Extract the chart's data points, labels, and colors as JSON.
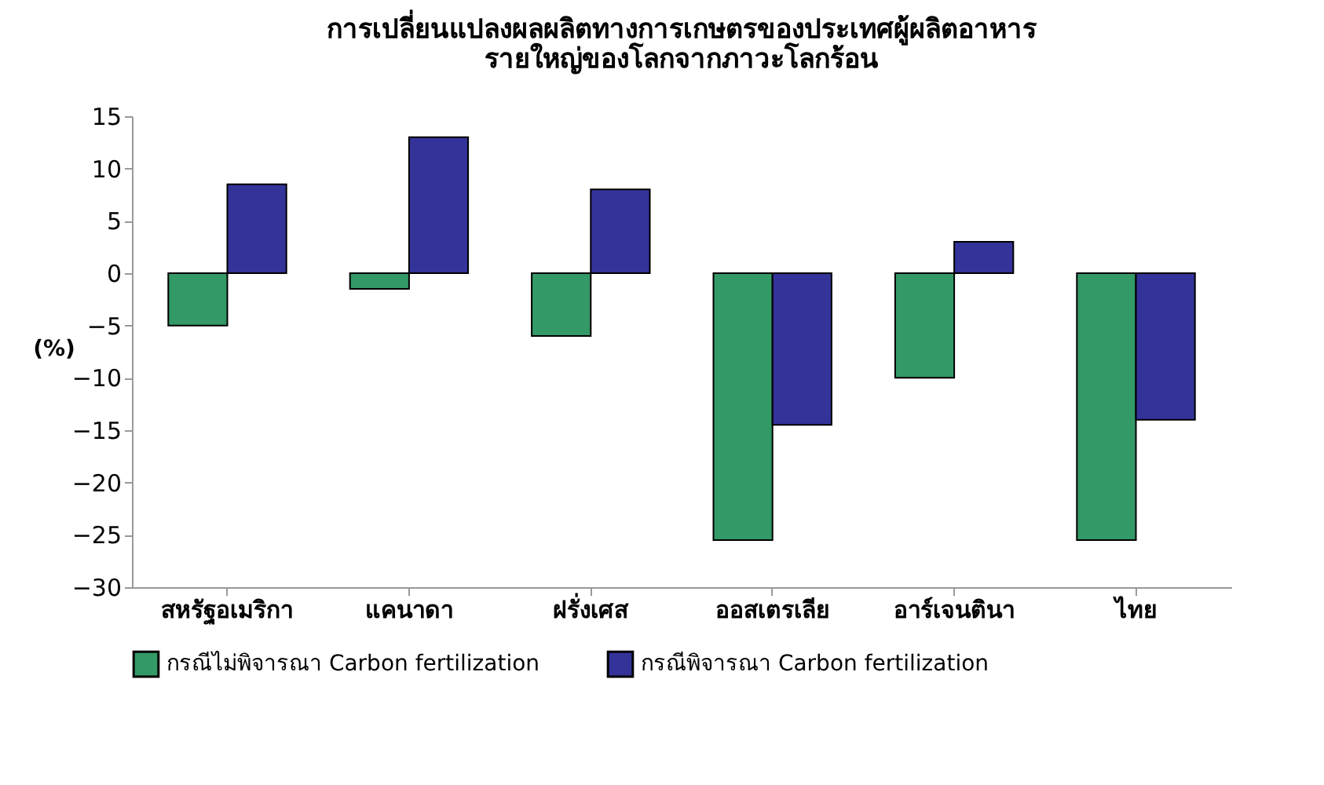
{
  "chart_data": {
    "type": "bar",
    "title": [
      "การเปลี่ยนแปลงผลผลิตทางการเกษตรของประเทศผู้ผลิตอาหาร",
      "รายใหญ่ของโลกจากภาวะโลกร้อน"
    ],
    "ylabel": "(%)",
    "categories": [
      "สหรัฐอเมริกา",
      "แคนาดา",
      "ฝรั่งเศส",
      "ออสเตรเลีย",
      "อาร์เจนตินา",
      "ไทย"
    ],
    "series": [
      {
        "name": "กรณีไม่พิจารณา Carbon fertilization",
        "color": "#339966",
        "values": [
          -5,
          -1.5,
          -6,
          -25.5,
          -10,
          -25.5
        ]
      },
      {
        "name": "กรณีพิจารณา Carbon fertilization",
        "color": "#333399",
        "values": [
          8.5,
          13,
          8,
          -14.5,
          3,
          -14
        ]
      }
    ],
    "ylim": [
      -30,
      15
    ],
    "yticks": [
      -30,
      -25,
      -20,
      -15,
      -10,
      -5,
      0,
      5,
      10,
      15
    ],
    "grid": false,
    "legend": "bottom"
  }
}
